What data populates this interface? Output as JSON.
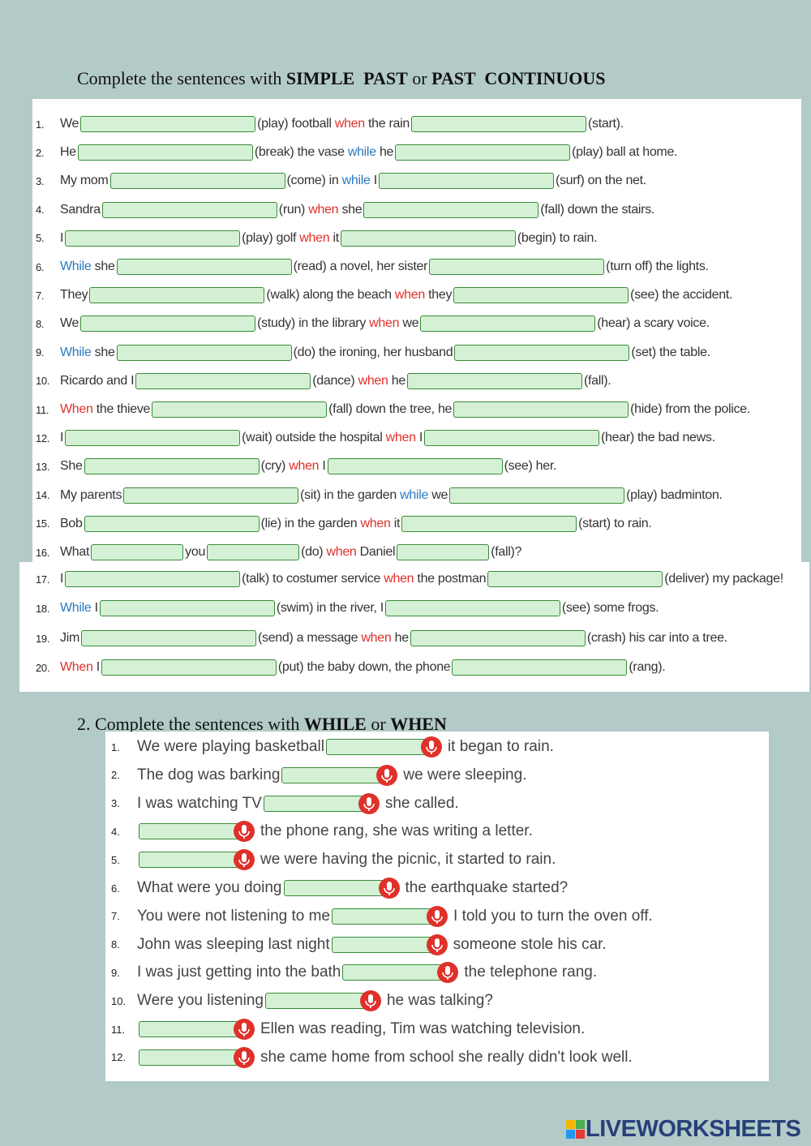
{
  "title": {
    "parts": [
      "Complete the sentences with ",
      "SIMPLE  PAST",
      " or ",
      "PAST  CONTINUOUS"
    ]
  },
  "section1": {
    "items": [
      {
        "num": "1.",
        "chunks": [
          [
            "We"
          ],
          [
            "(play) football ",
            {
              "text": "when",
              "color": "#e0302a"
            },
            " the rain"
          ],
          [
            "(start)."
          ]
        ]
      },
      {
        "num": "2.",
        "chunks": [
          [
            "He"
          ],
          [
            "(break) the vase ",
            {
              "text": "while",
              "color": "#2a7ac0"
            },
            " he"
          ],
          [
            "(play) ball at home."
          ]
        ]
      },
      {
        "num": "3.",
        "chunks": [
          [
            "My mom"
          ],
          [
            "(come) in ",
            {
              "text": "while",
              "color": "#2a7ac0"
            },
            " I"
          ],
          [
            "(surf) on the net."
          ]
        ]
      },
      {
        "num": "4.",
        "chunks": [
          [
            "Sandra"
          ],
          [
            "(run) ",
            {
              "text": "when",
              "color": "#e0302a"
            },
            " she"
          ],
          [
            "(fall) down the stairs."
          ]
        ]
      },
      {
        "num": "5.",
        "chunks": [
          [
            "I"
          ],
          [
            "(play) golf ",
            {
              "text": "when",
              "color": "#e0302a"
            },
            " it"
          ],
          [
            "(begin) to rain."
          ]
        ]
      },
      {
        "num": "6.",
        "chunks": [
          [
            {
              "text": "While",
              "color": "#2a7ac0"
            },
            " she"
          ],
          [
            "(read) a novel, her sister"
          ],
          [
            "(turn off) the lights."
          ]
        ]
      },
      {
        "num": "7.",
        "chunks": [
          [
            "They"
          ],
          [
            "(walk) along the beach ",
            {
              "text": "when",
              "color": "#e0302a"
            },
            " they"
          ],
          [
            "(see) the accident."
          ]
        ]
      },
      {
        "num": "8.",
        "chunks": [
          [
            "We"
          ],
          [
            "(study) in the library ",
            {
              "text": "when",
              "color": "#e0302a"
            },
            " we"
          ],
          [
            "(hear) a scary voice."
          ]
        ]
      },
      {
        "num": "9.",
        "chunks": [
          [
            {
              "text": "While",
              "color": "#2a7ac0"
            },
            " she"
          ],
          [
            "(do) the ironing, her husband"
          ],
          [
            "(set) the table."
          ]
        ]
      },
      {
        "num": "10.",
        "chunks": [
          [
            "Ricardo and I"
          ],
          [
            "(dance) ",
            {
              "text": "when",
              "color": "#e0302a"
            },
            " he"
          ],
          [
            "(fall)."
          ]
        ]
      },
      {
        "num": "11.",
        "chunks": [
          [
            {
              "text": "When",
              "color": "#e0302a"
            },
            " the thieve"
          ],
          [
            "(fall) down the tree, he"
          ],
          [
            "(hide) from the police."
          ]
        ]
      },
      {
        "num": "12.",
        "chunks": [
          [
            "I"
          ],
          [
            "(wait) outside the hospital ",
            {
              "text": "when",
              "color": "#e0302a"
            },
            " I"
          ],
          [
            "(hear) the bad news."
          ]
        ]
      },
      {
        "num": "13.",
        "chunks": [
          [
            "She"
          ],
          [
            "(cry) ",
            {
              "text": "when",
              "color": "#e0302a"
            },
            " I"
          ],
          [
            "(see) her."
          ]
        ]
      },
      {
        "num": "14.",
        "chunks": [
          [
            "My parents"
          ],
          [
            "(sit) in the garden ",
            {
              "text": "while",
              "color": "#2a7ac0"
            },
            " we"
          ],
          [
            "(play) badminton."
          ]
        ]
      },
      {
        "num": "15.",
        "chunks": [
          [
            "Bob"
          ],
          [
            "(lie) in the garden ",
            {
              "text": "when",
              "color": "#e0302a"
            },
            " it"
          ],
          [
            "(start) to rain."
          ]
        ]
      },
      {
        "num": "16.",
        "chunks": [
          [
            "What"
          ],
          [
            "you"
          ],
          [
            "(do) ",
            {
              "text": "when",
              "color": "#e0302a"
            },
            " Daniel"
          ],
          [
            "(fall)?"
          ]
        ]
      },
      {
        "num": "17.",
        "chunks": [
          [
            "I"
          ],
          [
            "(talk) to costumer service ",
            {
              "text": "when",
              "color": "#e0302a"
            },
            " the postman"
          ],
          [
            "(deliver) my package!"
          ]
        ]
      },
      {
        "num": "18.",
        "chunks": [
          [
            {
              "text": "While",
              "color": "#2a7ac0"
            },
            " I"
          ],
          [
            "(swim) in the river, I"
          ],
          [
            "(see) some frogs."
          ]
        ]
      },
      {
        "num": "19.",
        "chunks": [
          [
            "Jim"
          ],
          [
            "(send) a message ",
            {
              "text": "when",
              "color": "#e0302a"
            },
            " he"
          ],
          [
            "(crash) his car into a tree."
          ]
        ]
      },
      {
        "num": "20.",
        "chunks": [
          [
            {
              "text": "When",
              "color": "#e0302a"
            },
            " I"
          ],
          [
            "(put) the baby down, the phone"
          ],
          [
            "(rang)."
          ]
        ]
      }
    ]
  },
  "section2": {
    "title": {
      "parts": [
        "2. Complete the sentences with ",
        "WHILE",
        " or ",
        "WHEN"
      ]
    },
    "items": [
      {
        "num": "1.",
        "chunks": [
          [
            "We were playing basketball"
          ],
          [
            "it began to rain."
          ]
        ]
      },
      {
        "num": "2.",
        "chunks": [
          [
            "The dog was barking"
          ],
          [
            "we were sleeping."
          ]
        ]
      },
      {
        "num": "3.",
        "chunks": [
          [
            "I was watching TV"
          ],
          [
            "she called."
          ]
        ]
      },
      {
        "num": "4.",
        "chunks": [
          [],
          [
            "the phone rang, she was writing a letter."
          ]
        ]
      },
      {
        "num": "5.",
        "chunks": [
          [],
          [
            "we were having the picnic, it started to rain."
          ]
        ]
      },
      {
        "num": "6.",
        "chunks": [
          [
            "What were you doing"
          ],
          [
            "the earthquake started?"
          ]
        ]
      },
      {
        "num": "7.",
        "chunks": [
          [
            "You were not listening to me"
          ],
          [
            "I told you to turn the oven off."
          ]
        ]
      },
      {
        "num": "8.",
        "chunks": [
          [
            "John was sleeping last night"
          ],
          [
            "someone stole his car."
          ]
        ]
      },
      {
        "num": "9.",
        "chunks": [
          [
            "I was just getting into the bath"
          ],
          [
            "the telephone rang."
          ]
        ]
      },
      {
        "num": "10.",
        "chunks": [
          [
            "Were you listening"
          ],
          [
            "he was talking?"
          ]
        ]
      },
      {
        "num": "11.",
        "chunks": [
          [],
          [
            "Ellen was reading, Tim was watching television."
          ]
        ]
      },
      {
        "num": "12.",
        "chunks": [
          [],
          [
            "she came home from school she really didn't look well."
          ]
        ]
      }
    ]
  },
  "footer": {
    "logo": "LIVEWORKSHEETS"
  }
}
